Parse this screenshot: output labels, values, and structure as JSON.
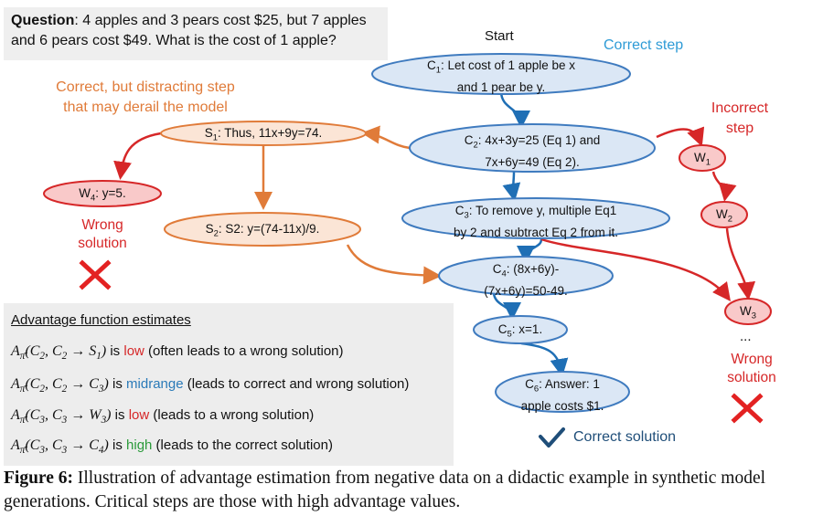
{
  "question": {
    "label": "Question",
    "text": ": 4 apples and 3 pears cost $25, but 7 apples and 6 pears cost $49. What is the cost of 1 apple?"
  },
  "labels": {
    "start": "Start",
    "correct_step": "Correct step",
    "distract_line1": "Correct, but distracting step",
    "distract_line2": "that may derail the model",
    "incorrect_line1": "Incorrect",
    "incorrect_line2": "step",
    "wrong_left_line1": "Wrong",
    "wrong_left_line2": "solution",
    "wrong_right_line1": "Wrong",
    "wrong_right_line2": "solution",
    "correct_solution": "Correct solution",
    "dots": "..."
  },
  "nodes": {
    "c1": {
      "name": "C",
      "sub": "1",
      "l1": ": Let cost of 1 apple be x",
      "l2": "and 1 pear be y."
    },
    "c2": {
      "name": "C",
      "sub": "2",
      "l1": ": 4x+3y=25 (Eq 1) and",
      "l2": "7x+6y=49 (Eq 2)."
    },
    "c3": {
      "name": "C",
      "sub": "3",
      "l1": ": To remove y, multiple Eq1",
      "l2": "by 2 and subtract Eq 2 from it."
    },
    "c4": {
      "name": "C",
      "sub": "4",
      "l1": ":  (8x+6y)-",
      "l2": "(7x+6y)=50-49."
    },
    "c5": {
      "name": "C",
      "sub": "5",
      "l1": ": x=1."
    },
    "c6": {
      "name": "C",
      "sub": "6",
      "l1": ": Answer: 1",
      "l2": "apple costs $1."
    },
    "s1": {
      "name": "S",
      "sub": "1",
      "l1": ": Thus, 11x+9y=74."
    },
    "s2": {
      "name": "S",
      "sub": "2",
      "l1": ": S2: y=(74-11x)/9."
    },
    "w4": {
      "name": "W",
      "sub": "4",
      "l1": ": y=5."
    },
    "w1": {
      "name": "W",
      "sub": "1"
    },
    "w2": {
      "name": "W",
      "sub": "2"
    },
    "w3": {
      "name": "W",
      "sub": "3"
    }
  },
  "advantage": {
    "title": "Advantage function estimates",
    "rows": [
      {
        "expr_from": "C",
        "expr_from_sub": "2",
        "expr_to": "S",
        "expr_to_sub": "1",
        "word": "low",
        "rest": " (often leads to a wrong solution)",
        "word_color": "#d62728"
      },
      {
        "expr_from": "C",
        "expr_from_sub": "2",
        "expr_to": "C",
        "expr_to_sub": "3",
        "word": "midrange",
        "rest": " (leads to correct and wrong solution)",
        "word_color": "#2a7ab8"
      },
      {
        "expr_from": "C",
        "expr_from_sub": "3",
        "expr_to": "W",
        "expr_to_sub": "3",
        "word": "low",
        "rest": " (leads to a wrong solution)",
        "word_color": "#d62728"
      },
      {
        "expr_from": "C",
        "expr_from_sub": "3",
        "expr_to": "C",
        "expr_to_sub": "4",
        "word": "high",
        "rest": " (leads to the correct solution)",
        "word_color": "#2a9a3a"
      }
    ],
    "is_word": "is"
  },
  "caption": {
    "label": "Figure 6:",
    "text": " Illustration of advantage estimation from negative data on a didactic example in synthetic model generations. Critical steps are those with high advantage values."
  },
  "colors": {
    "blue_fill": "#dbe7f5",
    "blue_stroke": "#3f7bbf",
    "orange_fill": "#fbe5d6",
    "orange_stroke": "#e07b39",
    "red_fill": "#f9c9c9",
    "red_stroke": "#d62728",
    "correct_label": "#2e9bd6",
    "check": "#1f4e79"
  }
}
